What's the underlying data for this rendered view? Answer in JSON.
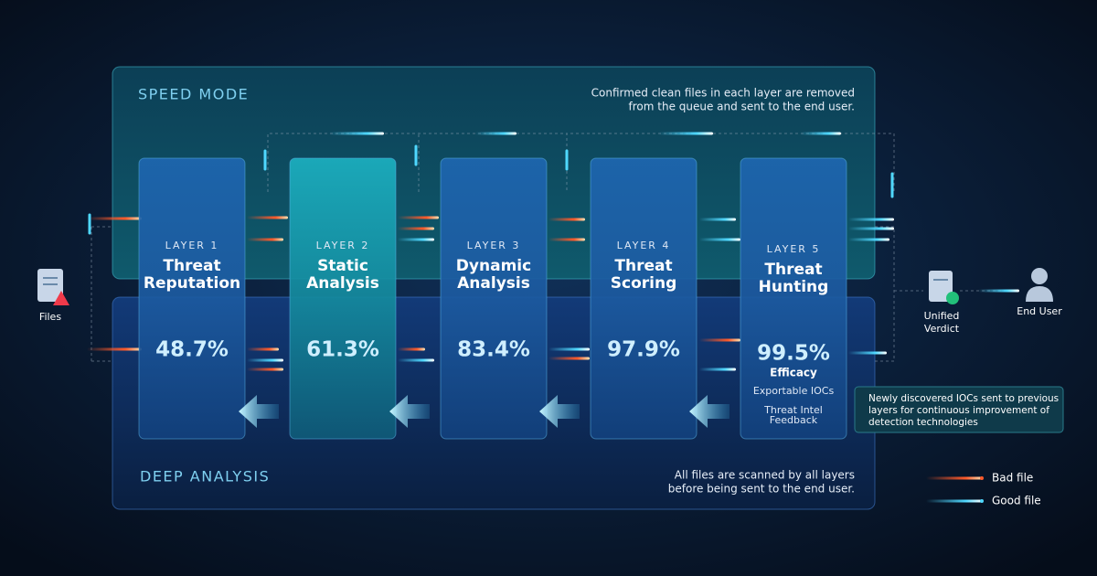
{
  "speed_mode": {
    "title": "SPEED MODE",
    "note": [
      "Confirmed clean files in each layer are removed",
      "from the queue and sent to the end user."
    ]
  },
  "deep_analysis": {
    "title": "DEEP ANALYSIS",
    "note": [
      "All files are scanned by all layers",
      "before being sent to the end user."
    ]
  },
  "layers": [
    {
      "label": "LAYER 1",
      "name": [
        "Threat",
        "Reputation"
      ],
      "rate": "48.7%"
    },
    {
      "label": "LAYER 2",
      "name": [
        "Static",
        "Analysis"
      ],
      "rate": "61.3%"
    },
    {
      "label": "LAYER 3",
      "name": [
        "Dynamic",
        "Analysis"
      ],
      "rate": "83.4%"
    },
    {
      "label": "LAYER 4",
      "name": [
        "Threat",
        "Scoring"
      ],
      "rate": "97.9%"
    },
    {
      "label": "LAYER 5",
      "name": [
        "Threat",
        "Hunting"
      ],
      "rate": "99.5%",
      "metric": "Efficacy",
      "outputs": [
        "Exportable IOCs",
        "Threat Intel",
        "Feedback"
      ]
    }
  ],
  "nodes": {
    "files": "Files",
    "verdict": [
      "Unified",
      "Verdict"
    ],
    "end_user": "End User"
  },
  "callout": [
    "Newly discovered IOCs sent to previous",
    "layers for continuous improvement of",
    "detection technologies"
  ],
  "legend": [
    {
      "label": "Bad file",
      "color": "#ff5a2a"
    },
    {
      "label": "Good file",
      "color": "#4fd8ff"
    }
  ]
}
